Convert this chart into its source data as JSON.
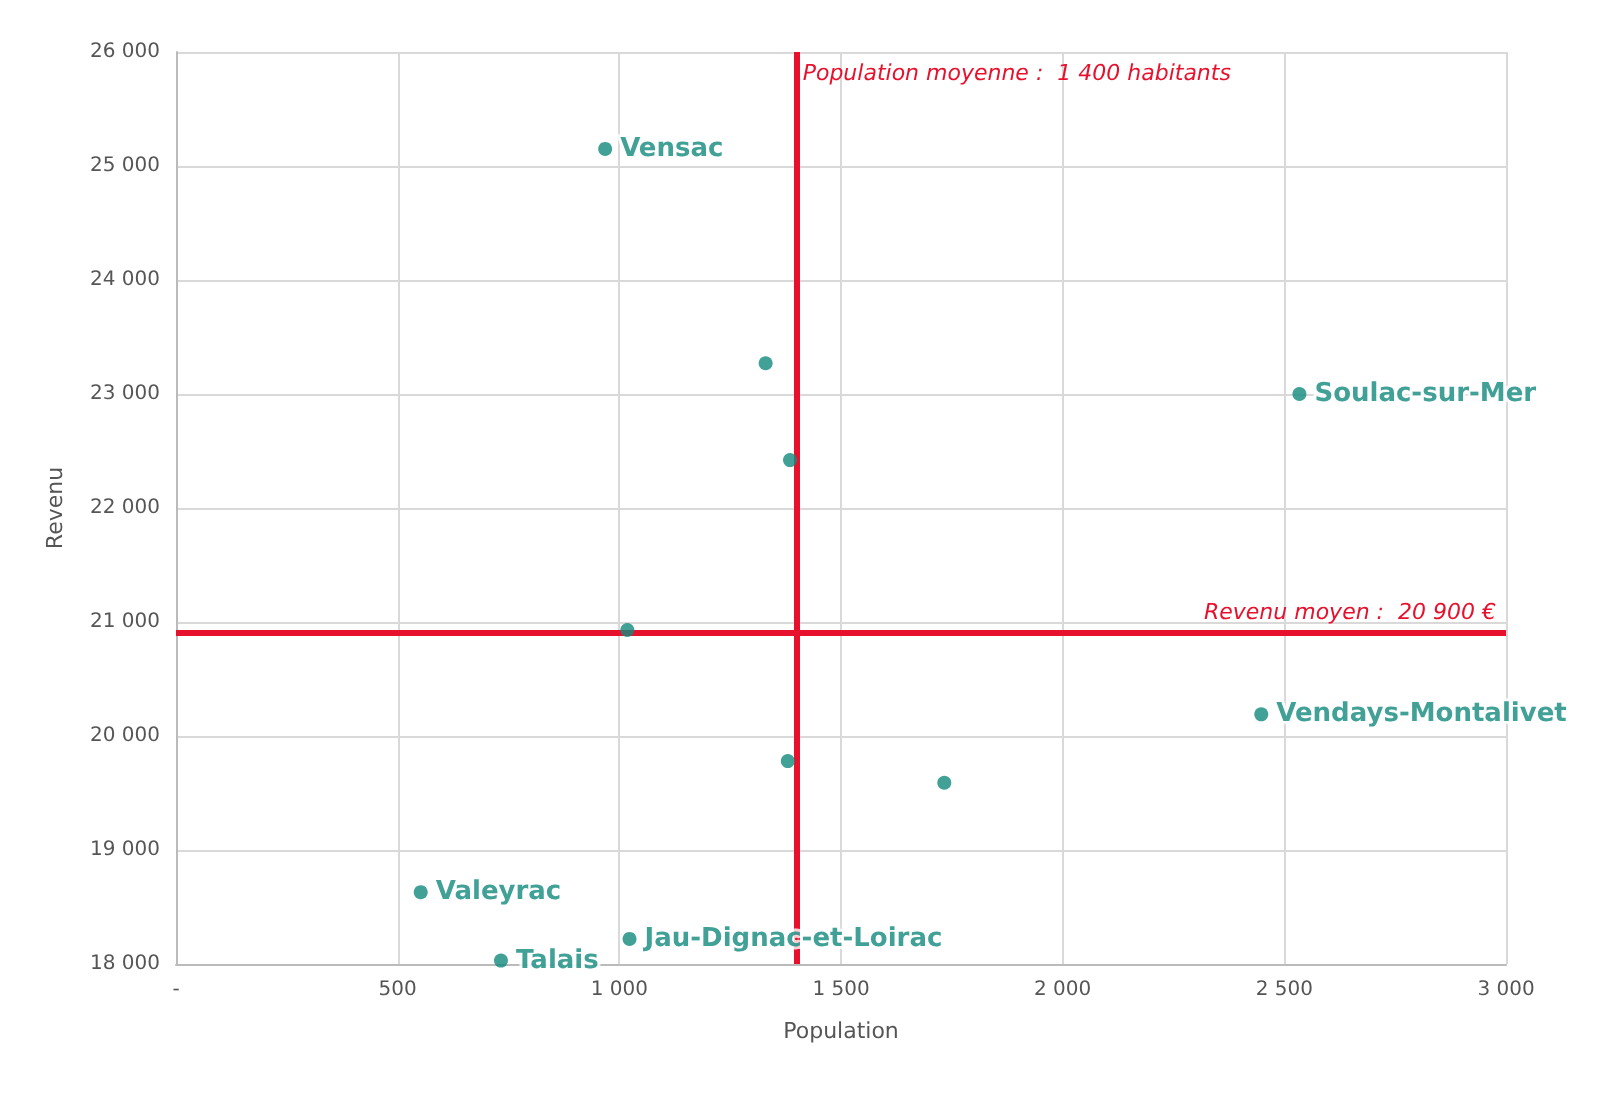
{
  "chart_data": {
    "type": "scatter",
    "xlabel": "Population",
    "ylabel": "Revenu",
    "x": [
      968,
      1330,
      1385,
      2534,
      1018,
      2448,
      1380,
      1733,
      552,
      1023,
      733
    ],
    "values": [
      25150,
      23270,
      22420,
      23000,
      20930,
      20190,
      19780,
      19590,
      18630,
      18220,
      18030
    ],
    "value_labels": [
      "Vensac",
      null,
      null,
      "Soulac-sur-Mer",
      null,
      "Vendays-Montalivet",
      null,
      null,
      "Valeyrac",
      "Jau-Dignac-et-Loirac",
      "Talais"
    ],
    "color": "#12897d",
    "marker": "circle",
    "xlim": [
      0,
      3000
    ],
    "xticks": [
      {
        "value": 0,
        "label": "-"
      },
      {
        "value": 500,
        "label": "500"
      },
      {
        "value": 1000,
        "label": "1 000"
      },
      {
        "value": 1500,
        "label": "1 500"
      },
      {
        "value": 2000,
        "label": "2 000"
      },
      {
        "value": 2500,
        "label": "2 500"
      },
      {
        "value": 3000,
        "label": "3 000"
      }
    ],
    "ylim": [
      18000,
      26000
    ],
    "yticks": [
      {
        "value": 18000,
        "label": "18 000"
      },
      {
        "value": 19000,
        "label": "19 000"
      },
      {
        "value": 20000,
        "label": "20 000"
      },
      {
        "value": 21000,
        "label": "21 000"
      },
      {
        "value": 22000,
        "label": "22 000"
      },
      {
        "value": 23000,
        "label": "23 000"
      },
      {
        "value": 24000,
        "label": "24 000"
      },
      {
        "value": 25000,
        "label": "25 000"
      },
      {
        "value": 26000,
        "label": "26 000"
      }
    ],
    "ref_lines": [
      {
        "axis": "x",
        "value": 1400,
        "label": "Population moyenne :  1 400 habitants",
        "color": "#e8112d"
      },
      {
        "axis": "y",
        "value": 20900,
        "label": "Revenu moyen :  20 900 €",
        "color": "#e8112d"
      }
    ],
    "grid": true
  }
}
